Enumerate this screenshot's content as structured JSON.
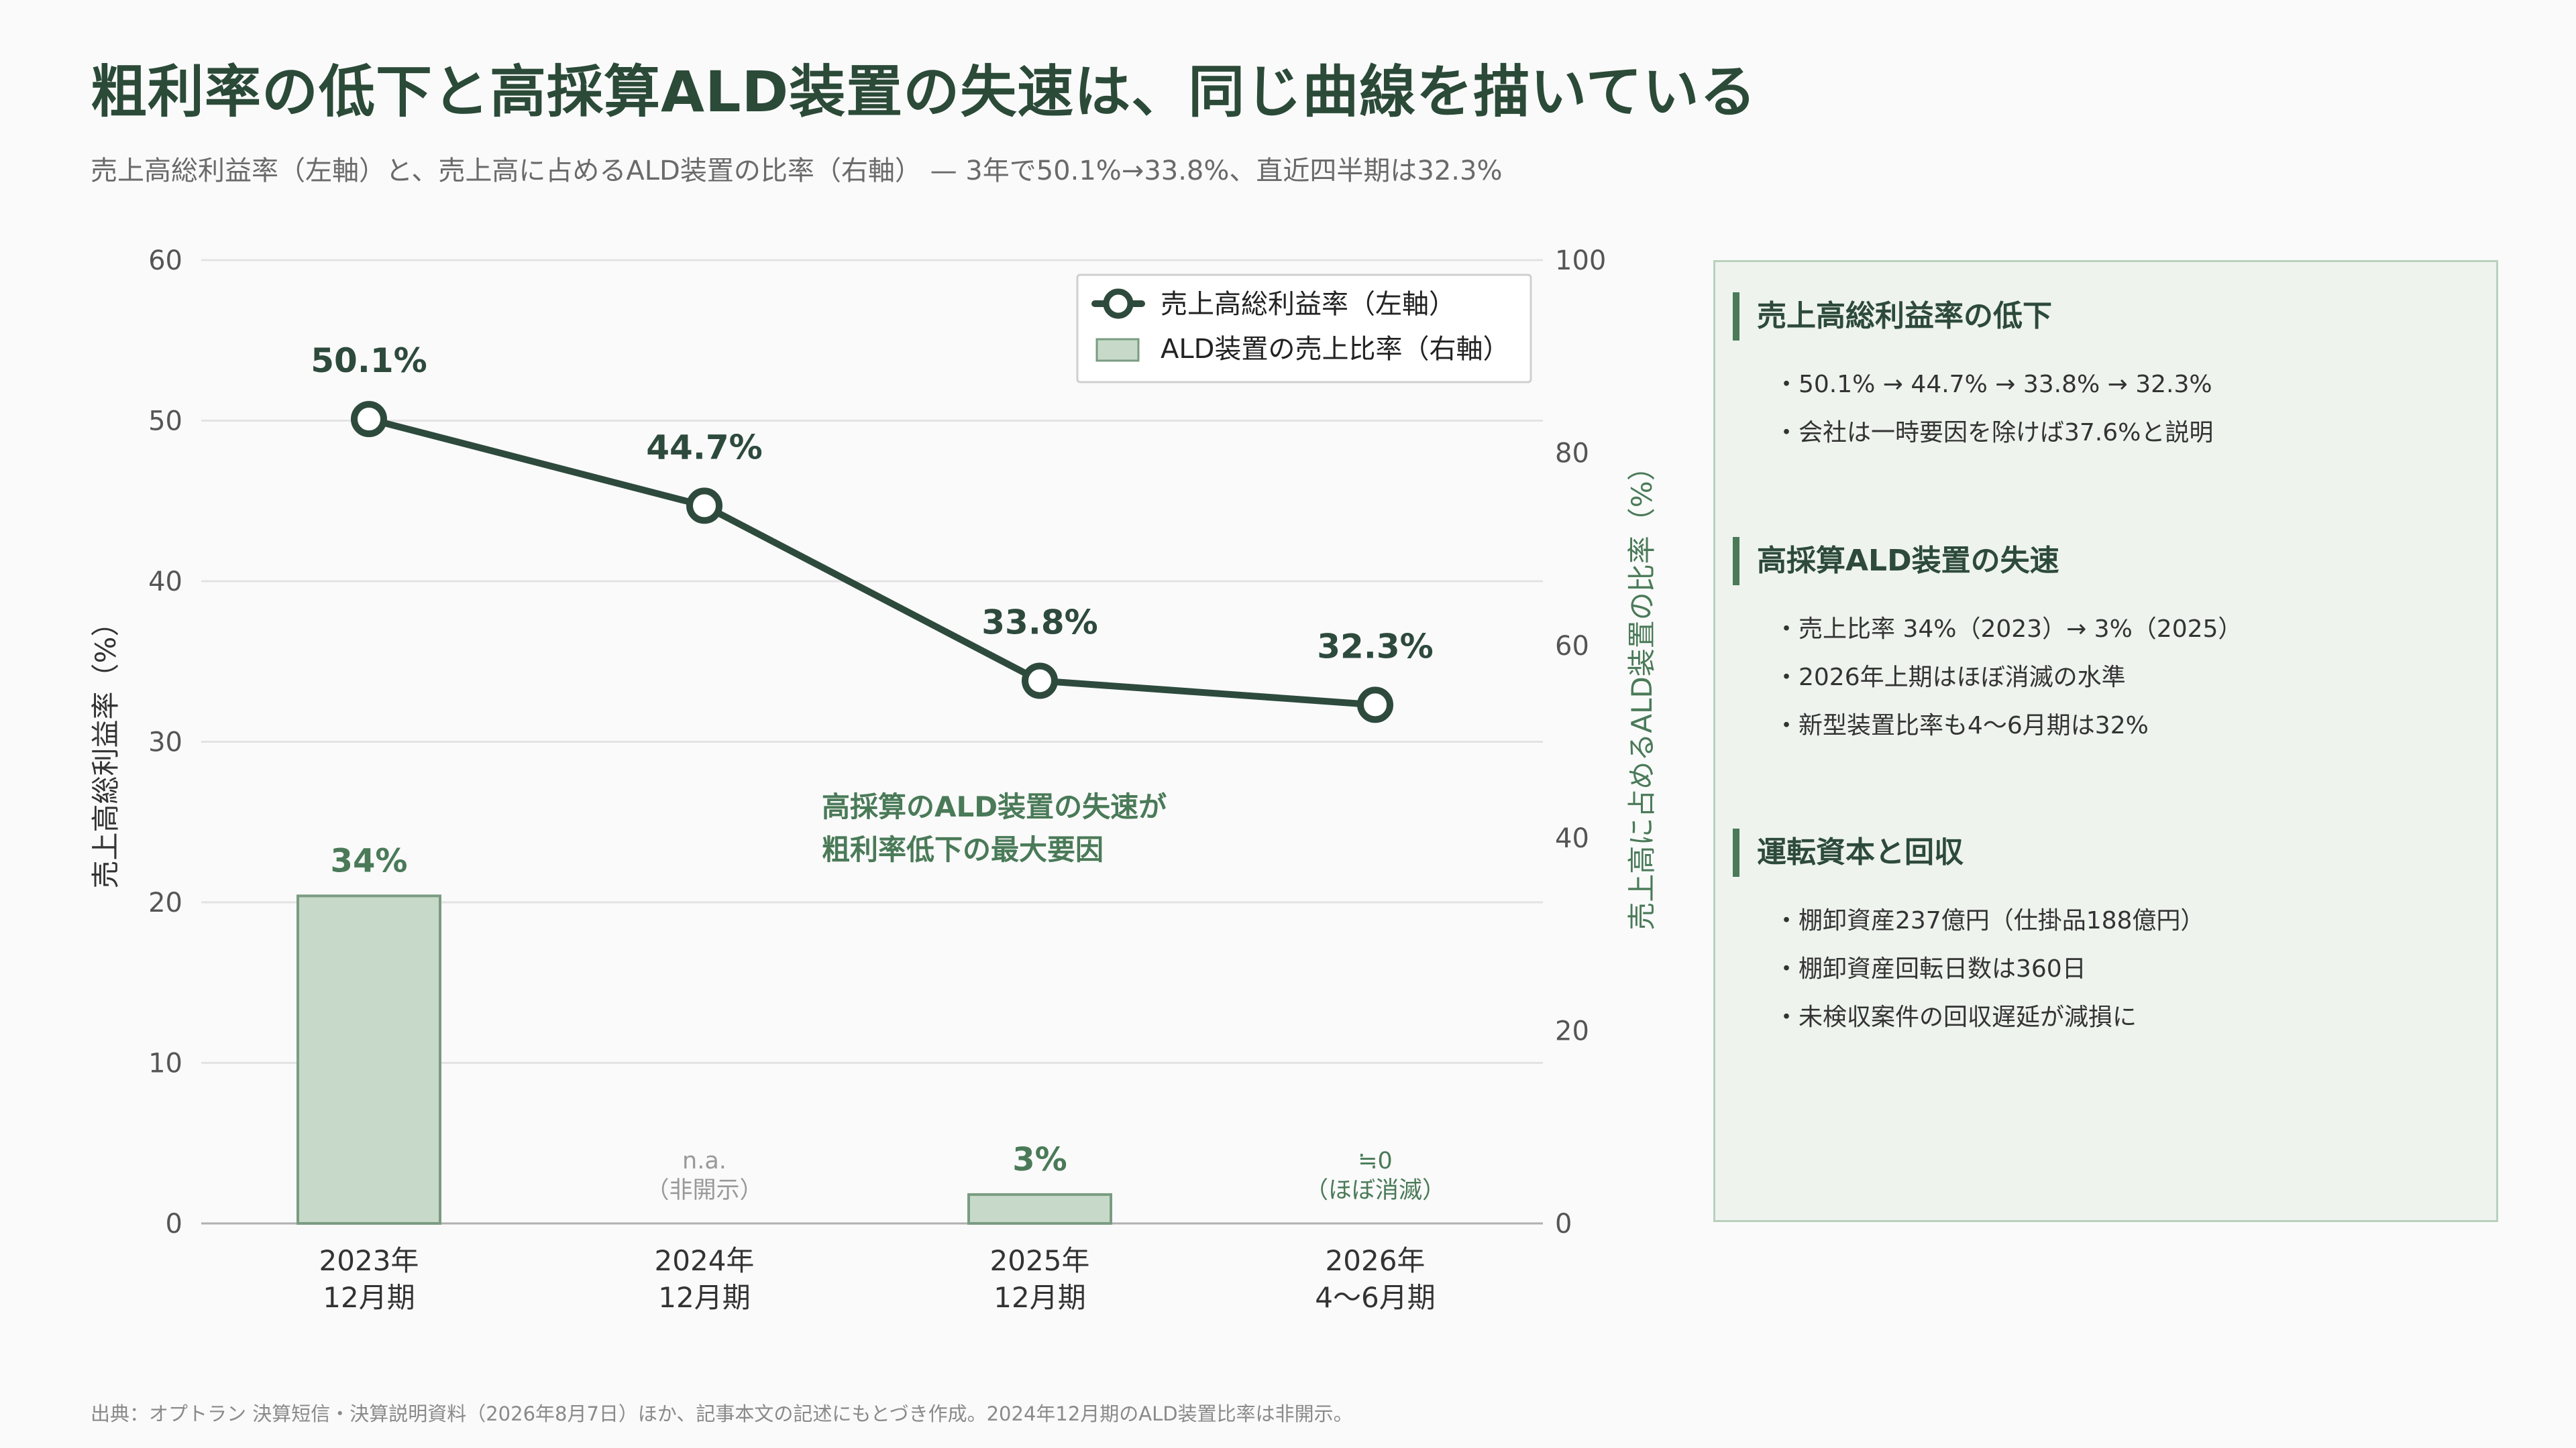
{
  "header": {
    "title": "粗利率の低下と高採算ALD装置の失速は、同じ曲線を描いている",
    "subtitle": "売上高総利益率（左軸）と、売上高に占めるALD装置の比率（右軸） — 3年で50.1%→33.8%、直近四半期は32.3%"
  },
  "colors": {
    "line": "#2d4a3d",
    "bar_fill": "#c7dac9",
    "bar_stroke": "#7a9c82",
    "accent_text": "#4a7a58",
    "muted": "#8a8a8a"
  },
  "chart_data": {
    "type": "bar+line",
    "categories": [
      [
        "2023年",
        "12月期"
      ],
      [
        "2024年",
        "12月期"
      ],
      [
        "2025年",
        "12月期"
      ],
      [
        "2026年",
        "4〜6月期"
      ]
    ],
    "left_axis": {
      "label": "売上高総利益率（%）",
      "ylim": [
        0,
        60
      ],
      "ticks": [
        0,
        10,
        20,
        30,
        40,
        50,
        60
      ]
    },
    "right_axis": {
      "label": "売上高に占めるALD装置の比率（%）",
      "ylim": [
        0,
        100
      ],
      "ticks": [
        0,
        20,
        40,
        60,
        80,
        100
      ]
    },
    "grid": true,
    "legend_position": "top-right",
    "series": [
      {
        "name": "売上高総利益率（左軸）",
        "kind": "line",
        "axis": "left",
        "values": [
          50.1,
          44.7,
          33.8,
          32.3
        ],
        "labels": [
          "50.1%",
          "44.7%",
          "33.8%",
          "32.3%"
        ]
      },
      {
        "name": "ALD装置の売上比率（右軸）",
        "kind": "bar",
        "axis": "right",
        "values": [
          34,
          null,
          3,
          null
        ],
        "labels": [
          "34%",
          "",
          "3%",
          ""
        ],
        "notes": [
          null,
          [
            "n.a.",
            "（非開示）"
          ],
          null,
          [
            "≒0",
            "（ほぼ消滅）"
          ]
        ]
      }
    ],
    "annotation": [
      "高採算のALD装置の失速が",
      "粗利率低下の最大要因"
    ]
  },
  "side_panel": {
    "sections": [
      {
        "heading": "売上高総利益率の低下",
        "items": [
          "・50.1% → 44.7% → 33.8% → 32.3%",
          "・会社は一時要因を除けば37.6%と説明"
        ]
      },
      {
        "heading": "高採算ALD装置の失速",
        "items": [
          "・売上比率 34%（2023）→ 3%（2025）",
          "・2026年上期はほぼ消滅の水準",
          "・新型装置比率も4〜6月期は32%"
        ]
      },
      {
        "heading": "運転資本と回収",
        "items": [
          "・棚卸資産237億円（仕掛品188億円）",
          "・棚卸資産回転日数は360日",
          "・未検収案件の回収遅延が減損に"
        ]
      }
    ]
  },
  "footer": {
    "source": "出典：オプトラン 決算短信・決算説明資料（2026年8月7日）ほか、記事本文の記述にもとづき作成。2024年12月期のALD装置比率は非開示。"
  }
}
